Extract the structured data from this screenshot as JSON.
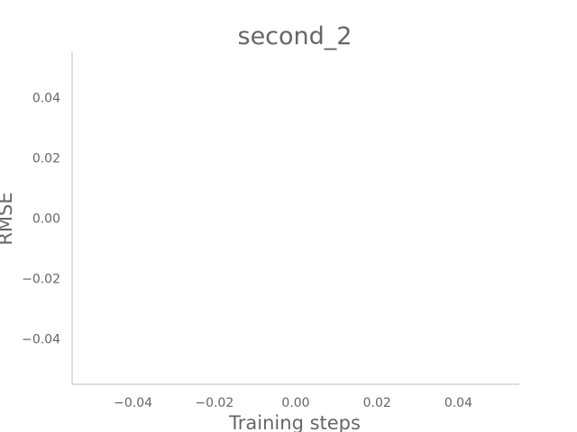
{
  "chart_data": {
    "type": "line",
    "title": "second_2",
    "xlabel": "Training steps",
    "ylabel": "RMSE",
    "xlim": [
      -0.055,
      0.055
    ],
    "ylim": [
      -0.055,
      0.055
    ],
    "x_ticks": [
      -0.04,
      -0.02,
      0.0,
      0.02,
      0.04
    ],
    "y_ticks": [
      -0.04,
      -0.02,
      0.0,
      0.02,
      0.04
    ],
    "x_tick_labels": [
      "−0.04",
      "−0.02",
      "0.00",
      "0.02",
      "0.04"
    ],
    "y_tick_labels": [
      "−0.04",
      "−0.02",
      "0.00",
      "0.02",
      "0.04"
    ],
    "series": [],
    "grid": false,
    "legend": null,
    "colors": {
      "text": "#666666",
      "spine": "#cccccc",
      "background": "#ffffff"
    }
  }
}
